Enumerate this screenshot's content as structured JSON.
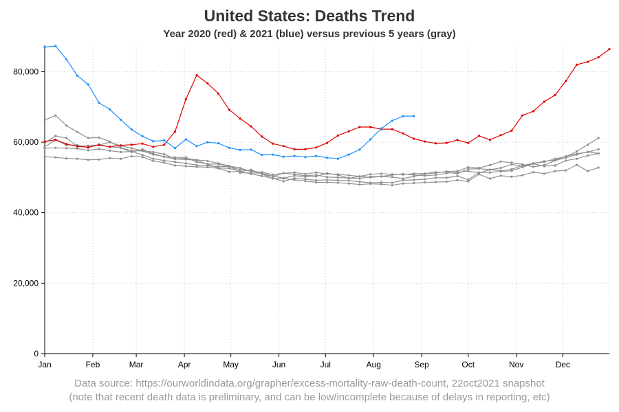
{
  "chart_data": {
    "type": "line",
    "title": "United States: Deaths Trend",
    "subtitle": "Year 2020 (red) & 2021 (blue) versus previous 5 years (gray)",
    "xlabel": "",
    "ylabel": "",
    "ylim": [
      0,
      87500
    ],
    "yticks": [
      0,
      20000,
      40000,
      60000,
      80000
    ],
    "ytick_labels": [
      "0",
      "20,000",
      "40,000",
      "60,000",
      "80,000"
    ],
    "month_labels": [
      "Jan",
      "Feb",
      "Mar",
      "Apr",
      "May",
      "Jun",
      "Jul",
      "Aug",
      "Sep",
      "Oct",
      "Nov",
      "Dec"
    ],
    "x_unit": "week of year",
    "xlim": [
      1,
      53
    ],
    "grid": true,
    "colors": {
      "2020": "#e00000",
      "2021": "#1e8fff",
      "previous": "#909090",
      "grid": "#c8c8c8",
      "axis": "#000000"
    },
    "series": [
      {
        "year": "2020",
        "color": "#e00000",
        "x": [
          1,
          2,
          3,
          4,
          5,
          6,
          7,
          8,
          9,
          10,
          11,
          12,
          13,
          14,
          15,
          16,
          17,
          18,
          19,
          20,
          21,
          22,
          23,
          24,
          25,
          26,
          27,
          28,
          29,
          30,
          31,
          32,
          33,
          34,
          35,
          36,
          37,
          38,
          39,
          40,
          41,
          42,
          43,
          44,
          45,
          46,
          47,
          48,
          49,
          50,
          51,
          52,
          53
        ],
        "values": [
          60200,
          60700,
          59500,
          58800,
          58600,
          59200,
          58700,
          59100,
          59300,
          59600,
          58700,
          59300,
          63000,
          72200,
          79000,
          76700,
          73800,
          69200,
          66700,
          64500,
          61600,
          59600,
          58900,
          58000,
          58000,
          58500,
          59800,
          61900,
          63100,
          64300,
          64300,
          63700,
          63700,
          62500,
          61000,
          60200,
          59700,
          59800,
          60600,
          59800,
          61800,
          60700,
          62000,
          63300,
          67600,
          68800,
          71500,
          73400,
          77400,
          82000,
          82800,
          84100,
          86400
        ]
      },
      {
        "year": "2021",
        "color": "#1e8fff",
        "x": [
          1,
          2,
          3,
          4,
          5,
          6,
          7,
          8,
          9,
          10,
          11,
          12,
          13,
          14,
          15,
          16,
          17,
          18,
          19,
          20,
          21,
          22,
          23,
          24,
          25,
          26,
          27,
          28,
          29,
          30,
          31,
          32,
          33,
          34,
          35
        ],
        "values": [
          87000,
          87300,
          83500,
          78900,
          76400,
          71200,
          69300,
          66400,
          63600,
          61700,
          60300,
          60500,
          58300,
          60800,
          58900,
          60000,
          59700,
          58400,
          57800,
          57900,
          56400,
          56500,
          55900,
          56100,
          55800,
          56100,
          55600,
          55300,
          56500,
          57900,
          60800,
          63900,
          66100,
          67400,
          67400
        ]
      },
      {
        "color": "#909090",
        "x": [
          1,
          2,
          3,
          4,
          5,
          6,
          7,
          8,
          9,
          10,
          11,
          12,
          13,
          14,
          15,
          16,
          17,
          18,
          19,
          20,
          21,
          22,
          23,
          24,
          25,
          26,
          27,
          28,
          29,
          30,
          31,
          32,
          33,
          34,
          35,
          36,
          37,
          38,
          39,
          40,
          41,
          42,
          43,
          44,
          45,
          46,
          47,
          48,
          49,
          50,
          51,
          52
        ],
        "values": [
          66300,
          67600,
          64700,
          62900,
          61200,
          61300,
          60200,
          58400,
          57600,
          57500,
          56500,
          55900,
          55200,
          55100,
          54900,
          53700,
          52700,
          52600,
          51700,
          52200,
          51000,
          50300,
          51200,
          50900,
          50500,
          50700,
          50100,
          50000,
          49800,
          49700,
          50200,
          50300,
          50100,
          49700,
          50300,
          51000,
          51300,
          51700,
          51800,
          52900,
          52700,
          53500,
          54500,
          54200,
          53700,
          53000,
          53500,
          54800,
          55600,
          56500,
          57300,
          56800
        ]
      },
      {
        "color": "#909090",
        "x": [
          1,
          2,
          3,
          4,
          5,
          6,
          7,
          8,
          9,
          10,
          11,
          12,
          13,
          14,
          15,
          16,
          17,
          18,
          19,
          20,
          21,
          22,
          23,
          24,
          25,
          26,
          27,
          28,
          29,
          30,
          31,
          32,
          33,
          34,
          35,
          36,
          37,
          38,
          39,
          40,
          41,
          42,
          43,
          44,
          45,
          46,
          47,
          48,
          49,
          50,
          51,
          52
        ],
        "values": [
          59800,
          61800,
          61200,
          58900,
          59000,
          59200,
          60000,
          59000,
          58300,
          57600,
          57200,
          56600,
          55300,
          55400,
          55000,
          54700,
          54000,
          53300,
          51300,
          51300,
          51200,
          50400,
          49800,
          50500,
          50200,
          50300,
          51200,
          50700,
          49800,
          50300,
          50000,
          50300,
          50700,
          51000,
          50700,
          50500,
          50700,
          51200,
          51500,
          51800,
          51300,
          52200,
          51900,
          52300,
          53400,
          54000,
          54400,
          55300,
          55900,
          57400,
          59300,
          61200
        ]
      },
      {
        "color": "#909090",
        "x": [
          1,
          2,
          3,
          4,
          5,
          6,
          7,
          8,
          9,
          10,
          11,
          12,
          13,
          14,
          15,
          16,
          17,
          18,
          19,
          20,
          21,
          22,
          23,
          24,
          25,
          26,
          27,
          28,
          29,
          30,
          31,
          32,
          33,
          34,
          35,
          36,
          37,
          38,
          39,
          40,
          41,
          42,
          43,
          44,
          45,
          46,
          47,
          48,
          49,
          50,
          51,
          52
        ],
        "values": [
          58700,
          60600,
          59200,
          59200,
          58400,
          59400,
          58700,
          58400,
          57200,
          58000,
          56700,
          55900,
          55700,
          55700,
          54400,
          53800,
          53800,
          53200,
          52700,
          51700,
          51500,
          50800,
          51200,
          51400,
          51000,
          51400,
          51000,
          50900,
          50600,
          50300,
          50900,
          51100,
          50900,
          50800,
          51100,
          51100,
          51500,
          51500,
          51100,
          52400,
          52500,
          52200,
          52700,
          53700,
          53200,
          54000,
          54600,
          54900,
          56000,
          56700,
          57200,
          58000
        ]
      },
      {
        "color": "#909090",
        "x": [
          1,
          2,
          3,
          4,
          5,
          6,
          7,
          8,
          9,
          10,
          11,
          12,
          13,
          14,
          15,
          16,
          17,
          18,
          19,
          20,
          21,
          22,
          23,
          24,
          25,
          26,
          27,
          28,
          29,
          30,
          31,
          32,
          33,
          34,
          35,
          36,
          37,
          38,
          39,
          40,
          41,
          42,
          43,
          44,
          45,
          46,
          47,
          48,
          49,
          50,
          51,
          52
        ],
        "values": [
          58300,
          58400,
          58300,
          58200,
          57700,
          58100,
          57600,
          57200,
          57400,
          56400,
          55300,
          54800,
          54400,
          54000,
          53500,
          53300,
          53100,
          53100,
          52200,
          52000,
          51000,
          49700,
          49700,
          49300,
          49000,
          48600,
          48600,
          48500,
          48300,
          48000,
          48200,
          48100,
          47800,
          48300,
          48400,
          48600,
          48700,
          48800,
          49200,
          48900,
          50900,
          49700,
          50500,
          50200,
          50600,
          51500,
          51100,
          51800,
          52000,
          53600,
          51800,
          52800
        ]
      },
      {
        "color": "#909090",
        "x": [
          1,
          2,
          3,
          4,
          5,
          6,
          7,
          8,
          9,
          10,
          11,
          12,
          13,
          14,
          15,
          16,
          17,
          18,
          19,
          20,
          21,
          22,
          23,
          24,
          25,
          26,
          27,
          28,
          29,
          30,
          31,
          32,
          33,
          34,
          35,
          36,
          37,
          38,
          39,
          40,
          41,
          42,
          43,
          44,
          45,
          46,
          47,
          48,
          49,
          50,
          51,
          52
        ],
        "values": [
          55900,
          55700,
          55400,
          55300,
          55000,
          55100,
          55500,
          55300,
          56000,
          55800,
          54700,
          54200,
          53400,
          53200,
          53000,
          52900,
          52600,
          51600,
          51700,
          51000,
          50400,
          49800,
          48900,
          49800,
          49500,
          49200,
          49300,
          49200,
          49100,
          48800,
          48500,
          48600,
          48500,
          49200,
          49300,
          49500,
          49900,
          49900,
          50400,
          49400,
          51400,
          51400,
          51700,
          51900,
          52900,
          53900,
          53200,
          53400,
          54800,
          55300,
          56200,
          56800
        ]
      }
    ]
  },
  "footnote": {
    "line1": "Data source: https://ourworldindata.org/grapher/excess-mortality-raw-death-count, 22oct2021 snapshot",
    "line2": "(note that recent death data is preliminary, and can be low/incomplete because of delays in reporting, etc)"
  }
}
